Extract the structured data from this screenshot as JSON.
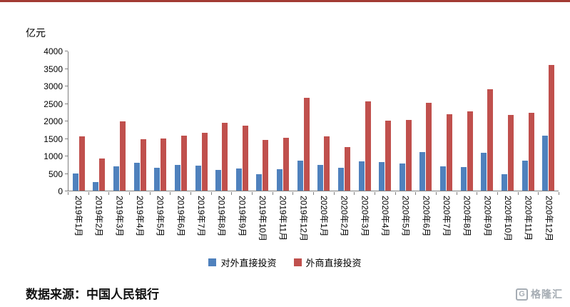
{
  "accent_color": "#a23b34",
  "chart_data": {
    "type": "bar",
    "title": "",
    "xlabel": "",
    "ylabel": "亿元",
    "ylim": [
      0,
      4000
    ],
    "ytick_step": 500,
    "grid": false,
    "legend_position": "bottom",
    "categories": [
      "2019年1月",
      "2019年2月",
      "2019年3月",
      "2019年4月",
      "2019年5月",
      "2019年6月",
      "2019年7月",
      "2019年8月",
      "2019年9月",
      "2019年10月",
      "2019年11月",
      "2019年12月",
      "2020年1月",
      "2020年2月",
      "2020年3月",
      "2020年4月",
      "2020年5月",
      "2020年6月",
      "2020年7月",
      "2020年8月",
      "2020年9月",
      "2020年10月",
      "2020年11月",
      "2020年12月"
    ],
    "series": [
      {
        "name": "对外直接投资",
        "color": "#4f81bd",
        "values": [
          500,
          250,
          690,
          800,
          650,
          730,
          710,
          590,
          640,
          470,
          610,
          870,
          730,
          650,
          850,
          830,
          770,
          1110,
          700,
          670,
          1090,
          480,
          870,
          1580
        ]
      },
      {
        "name": "外商直接投资",
        "color": "#c0504d",
        "values": [
          1560,
          930,
          1980,
          1480,
          1500,
          1580,
          1660,
          1940,
          1860,
          1450,
          1520,
          2670,
          1560,
          1250,
          2570,
          2020,
          2040,
          2530,
          2200,
          2280,
          2910,
          2180,
          2240,
          3620
        ]
      }
    ]
  },
  "footer": {
    "source": "数据来源：中国人民银行"
  },
  "logo": {
    "icon_letter": "G",
    "text": "格隆汇"
  }
}
